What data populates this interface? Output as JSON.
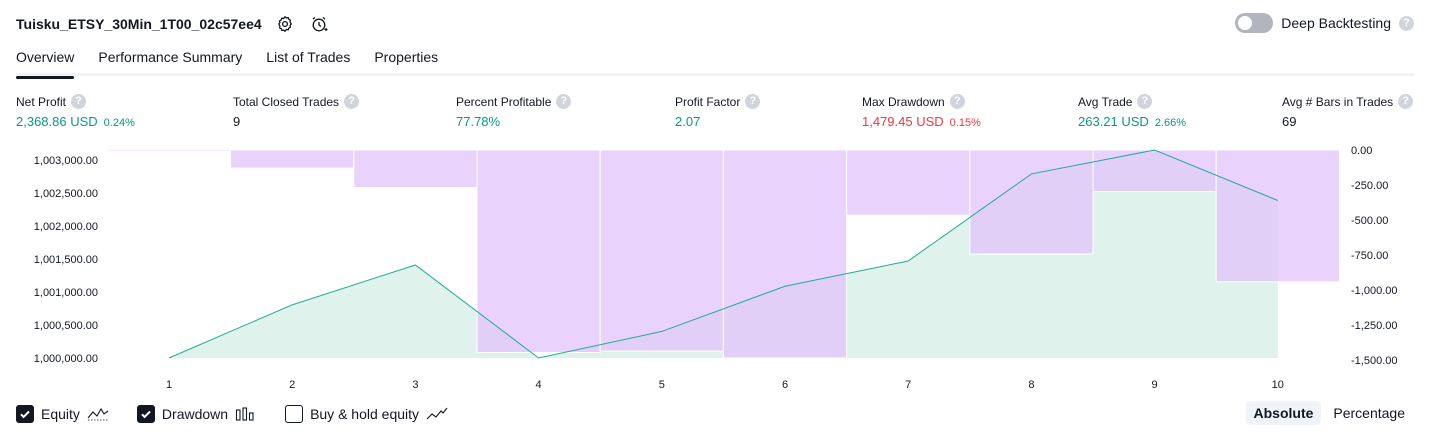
{
  "header": {
    "title": "Tuisku_ETSY_30Min_1T00_02c57ee4",
    "deep_backtesting_label": "Deep Backtesting",
    "help_glyph": "?"
  },
  "tabs": [
    {
      "label": "Overview",
      "active": true
    },
    {
      "label": "Performance Summary",
      "active": false
    },
    {
      "label": "List of Trades",
      "active": false
    },
    {
      "label": "Properties",
      "active": false
    }
  ],
  "metrics": [
    {
      "label": "Net Profit",
      "value": "2,368.86 USD",
      "pct": "0.24%",
      "tone": "pos"
    },
    {
      "label": "Total Closed Trades",
      "value": "9",
      "pct": "",
      "tone": "neu"
    },
    {
      "label": "Percent Profitable",
      "value": "77.78%",
      "pct": "",
      "tone": "pos"
    },
    {
      "label": "Profit Factor",
      "value": "2.07",
      "pct": "",
      "tone": "pos"
    },
    {
      "label": "Max Drawdown",
      "value": "1,479.45 USD",
      "pct": "0.15%",
      "tone": "neg"
    },
    {
      "label": "Avg Trade",
      "value": "263.21 USD",
      "pct": "2.66%",
      "tone": "pos"
    },
    {
      "label": "Avg # Bars in Trades",
      "value": "69",
      "pct": "",
      "tone": "neu"
    }
  ],
  "chart_data": {
    "type": "line",
    "x": [
      1,
      2,
      3,
      4,
      5,
      6,
      7,
      8,
      9,
      10
    ],
    "series": [
      {
        "name": "Equity",
        "values": [
          1000000,
          1000800,
          1001400,
          1000000,
          1000400,
          1001080,
          1001460,
          1002770,
          1003130,
          1002370
        ]
      },
      {
        "name": "Drawdown",
        "values": [
          0,
          -130,
          -270,
          -1460,
          -1450,
          -1500,
          -470,
          -750,
          -300,
          -950
        ]
      }
    ],
    "y_left_ticks": [
      "1,003,000.00",
      "1,002,500.00",
      "1,002,000.00",
      "1,001,500.00",
      "1,001,000.00",
      "1,000,500.00",
      "1,000,000.00"
    ],
    "y_right_ticks": [
      "0.00",
      "-250.00",
      "-500.00",
      "-750.00",
      "-1,000.00",
      "-1,250.00",
      "-1,500.00"
    ],
    "ylim_left": [
      1000000,
      1003130
    ],
    "ylim_right": [
      -1500,
      0
    ],
    "colors": {
      "equity_line": "#22ab94",
      "equity_fill": "#dff2ec",
      "drawdown": "#e1c3fb"
    },
    "grid": false
  },
  "footer": {
    "legend": [
      {
        "label": "Equity",
        "checked": true,
        "icon": "equity-line-icon"
      },
      {
        "label": "Drawdown",
        "checked": true,
        "icon": "drawdown-bars-icon"
      },
      {
        "label": "Buy & hold equity",
        "checked": false,
        "icon": "buy-hold-line-icon"
      }
    ],
    "modes": [
      {
        "label": "Absolute",
        "active": true
      },
      {
        "label": "Percentage",
        "active": false
      }
    ]
  }
}
